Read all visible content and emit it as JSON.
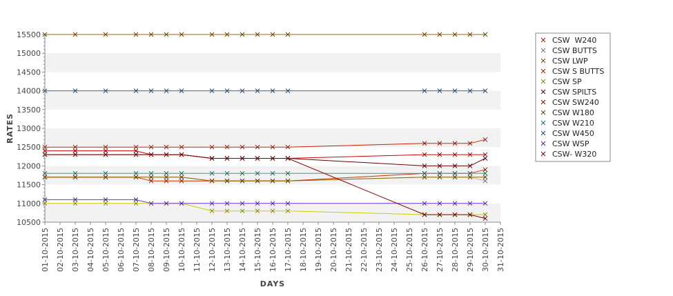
{
  "chart_data": {
    "type": "line",
    "title": "",
    "xlabel": "DAYS",
    "ylabel": "RATES",
    "ylim": [
      10500,
      15500
    ],
    "yticks": [
      10500,
      11000,
      11500,
      12000,
      12500,
      13000,
      13500,
      14000,
      14500,
      15000,
      15500
    ],
    "xlim": [
      "01-10-2015",
      "31-10-2015"
    ],
    "xtick_labels": [
      "01-10-2015",
      "02-10-2015",
      "03-10-2015",
      "04-10-2015",
      "05-10-2015",
      "06-10-2015",
      "07-10-2015",
      "08-10-2015",
      "09-10-2015",
      "10-10-2015",
      "11-10-2015",
      "12-10-2015",
      "13-10-2015",
      "14-10-2015",
      "15-10-2015",
      "16-10-2015",
      "17-10-2015",
      "18-10-2015",
      "19-10-2015",
      "20-10-2015",
      "21-10-2015",
      "22-10-2015",
      "23-10-2015",
      "24-10-2015",
      "25-10-2015",
      "26-10-2015",
      "27-10-2015",
      "28-10-2015",
      "29-10-2015",
      "30-10-2015",
      "31-10-2015"
    ],
    "x": [
      "01-10-2015",
      "03-10-2015",
      "05-10-2015",
      "07-10-2015",
      "08-10-2015",
      "09-10-2015",
      "10-10-2015",
      "12-10-2015",
      "13-10-2015",
      "14-10-2015",
      "15-10-2015",
      "16-10-2015",
      "17-10-2015",
      "26-10-2015",
      "27-10-2015",
      "28-10-2015",
      "29-10-2015",
      "30-10-2015"
    ],
    "grid": "alternating-bands",
    "legend_position": "right",
    "marker": "x",
    "series": [
      {
        "name": "CSW  W240",
        "color": "#cc2200",
        "values": [
          12500,
          12500,
          12500,
          12500,
          12500,
          12500,
          12500,
          12500,
          12500,
          12500,
          12500,
          12500,
          12500,
          12600,
          12600,
          12600,
          12600,
          12700
        ]
      },
      {
        "name": "CSW BUTTS",
        "color": "#ccaaaa",
        "values": [
          11700,
          11700,
          11700,
          11700,
          11700,
          11700,
          11700,
          11600,
          11600,
          11600,
          11600,
          11600,
          11600,
          11700,
          11700,
          11700,
          11700,
          11600
        ]
      },
      {
        "name": "CSW LWP",
        "color": "#996600",
        "values": [
          15500,
          15500,
          15500,
          15500,
          15500,
          15500,
          15500,
          15500,
          15500,
          15500,
          15500,
          15500,
          15500,
          15500,
          15500,
          15500,
          15500,
          15500
        ]
      },
      {
        "name": "CSW S BUTTS",
        "color": "#cc3300",
        "values": [
          11700,
          11700,
          11700,
          11700,
          11600,
          11600,
          11600,
          11600,
          11600,
          11600,
          11600,
          11600,
          11600,
          11800,
          11800,
          11800,
          11800,
          11900
        ]
      },
      {
        "name": "CSW SP",
        "color": "#cccc00",
        "values": [
          11000,
          11000,
          11000,
          11000,
          11000,
          11000,
          11000,
          10800,
          10800,
          10800,
          10800,
          10800,
          10800,
          10700,
          10700,
          10700,
          10700,
          10700
        ]
      },
      {
        "name": "CSW SPILTS",
        "color": "#660000",
        "values": [
          12300,
          12300,
          12300,
          12300,
          12300,
          12300,
          12300,
          12200,
          12200,
          12200,
          12200,
          12200,
          12200,
          12000,
          12000,
          12000,
          12000,
          12200
        ]
      },
      {
        "name": "CSW SW240",
        "color": "#cc0000",
        "values": [
          12400,
          12400,
          12400,
          12400,
          12300,
          12300,
          12300,
          12200,
          12200,
          12200,
          12200,
          12200,
          12200,
          12300,
          12300,
          12300,
          12300,
          12300
        ]
      },
      {
        "name": "CSW W180",
        "color": "#886600",
        "values": [
          11700,
          11700,
          11700,
          11700,
          11700,
          11700,
          11700,
          11600,
          11600,
          11600,
          11600,
          11600,
          11600,
          11700,
          11700,
          11700,
          11700,
          11700
        ]
      },
      {
        "name": "CSW W210",
        "color": "#339999",
        "values": [
          11800,
          11800,
          11800,
          11800,
          11800,
          11800,
          11800,
          11800,
          11800,
          11800,
          11800,
          11800,
          11800,
          11800,
          11800,
          11800,
          11800,
          11800
        ]
      },
      {
        "name": "CSW W450",
        "color": "#336699",
        "values": [
          14000,
          14000,
          14000,
          14000,
          14000,
          14000,
          14000,
          14000,
          14000,
          14000,
          14000,
          14000,
          14000,
          14000,
          14000,
          14000,
          14000,
          14000
        ]
      },
      {
        "name": "CSW WSP",
        "color": "#6633cc",
        "values": [
          11100,
          11100,
          11100,
          11100,
          11000,
          11000,
          11000,
          11000,
          11000,
          11000,
          11000,
          11000,
          11000,
          11000,
          11000,
          11000,
          11000,
          11000
        ]
      },
      {
        "name": "CSW- W320",
        "color": "#880000",
        "values": [
          12300,
          12300,
          12300,
          12300,
          12300,
          12300,
          12300,
          12200,
          12200,
          12200,
          12200,
          12200,
          12200,
          10700,
          10700,
          10700,
          10700,
          10600
        ]
      }
    ]
  }
}
